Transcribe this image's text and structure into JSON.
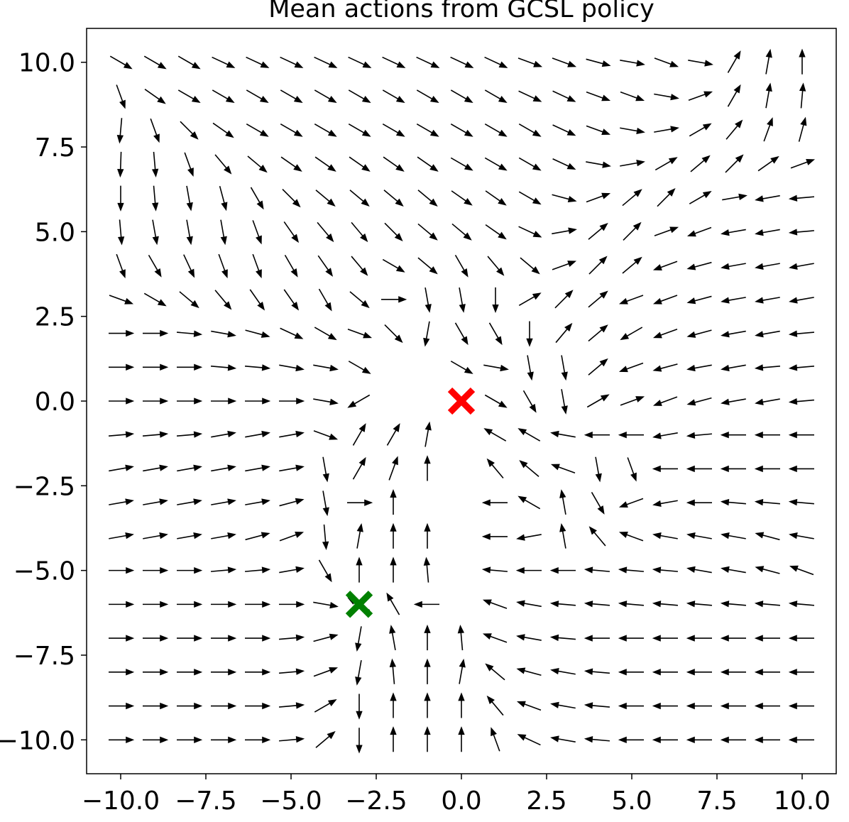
{
  "chart_data": {
    "type": "quiver",
    "title": "Mean actions from GCSL policy",
    "x": [
      -10,
      -9,
      -8,
      -7,
      -6,
      -5,
      -4,
      -3,
      -2,
      -1,
      0,
      1,
      2,
      3,
      4,
      5,
      6,
      7,
      8,
      9,
      10
    ],
    "y": [
      10,
      9,
      8,
      7,
      6,
      5,
      4,
      3,
      2,
      1,
      0,
      -1,
      -2,
      -3,
      -4,
      -5,
      -6,
      -7,
      -8,
      -9,
      -10
    ],
    "angles": [
      [
        -30,
        -30,
        -30,
        -25,
        -25,
        -25,
        -25,
        -25,
        -25,
        -25,
        -25,
        -25,
        -20,
        -20,
        -15,
        -10,
        -20,
        -10,
        60,
        80,
        90
      ],
      [
        -70,
        -35,
        -30,
        -30,
        -30,
        -30,
        -30,
        -30,
        -30,
        -30,
        -30,
        -30,
        -25,
        -25,
        -20,
        -20,
        -10,
        20,
        60,
        80,
        85
      ],
      [
        -95,
        -70,
        -45,
        -35,
        -30,
        -30,
        -30,
        -30,
        -30,
        -30,
        -30,
        -30,
        -30,
        -25,
        -20,
        -10,
        10,
        30,
        50,
        70,
        75
      ],
      [
        -92,
        -85,
        -70,
        -50,
        -40,
        -35,
        -35,
        -35,
        -35,
        -35,
        -30,
        -30,
        -30,
        -25,
        -10,
        10,
        30,
        40,
        45,
        35,
        20
      ],
      [
        -90,
        -85,
        -80,
        -75,
        -60,
        -45,
        -40,
        -40,
        -40,
        -40,
        -35,
        -35,
        -30,
        -15,
        20,
        40,
        45,
        30,
        10,
        190,
        185
      ],
      [
        -85,
        -80,
        -80,
        -80,
        -70,
        -55,
        -50,
        -50,
        -45,
        -40,
        -40,
        -35,
        -25,
        10,
        40,
        45,
        20,
        200,
        190,
        190,
        185
      ],
      [
        -70,
        -60,
        -65,
        -70,
        -70,
        -60,
        -55,
        -50,
        -30,
        -40,
        -60,
        -50,
        -40,
        20,
        45,
        40,
        200,
        195,
        190,
        190,
        190
      ],
      [
        -20,
        -30,
        -40,
        -50,
        -55,
        -55,
        -60,
        -40,
        0,
        -80,
        -80,
        -90,
        30,
        45,
        40,
        200,
        200,
        195,
        190,
        190,
        190
      ],
      [
        0,
        0,
        -5,
        -10,
        -15,
        -25,
        -30,
        -20,
        -45,
        -100,
        -60,
        -60,
        -90,
        50,
        40,
        210,
        200,
        195,
        190,
        190,
        185
      ],
      [
        0,
        0,
        0,
        -5,
        -5,
        -10,
        -10,
        -30,
        null,
        null,
        -30,
        -10,
        -80,
        -80,
        40,
        200,
        195,
        190,
        190,
        185,
        185
      ],
      [
        0,
        0,
        0,
        0,
        0,
        0,
        -10,
        210,
        null,
        null,
        null,
        -30,
        -60,
        -80,
        30,
        20,
        200,
        195,
        190,
        190,
        185
      ],
      [
        5,
        5,
        5,
        10,
        10,
        10,
        -20,
        60,
        60,
        80,
        null,
        150,
        150,
        170,
        180,
        180,
        190,
        185,
        180,
        180,
        180
      ],
      [
        10,
        10,
        10,
        10,
        10,
        10,
        -80,
        60,
        70,
        90,
        null,
        130,
        140,
        160,
        -80,
        -70,
        180,
        180,
        180,
        180,
        180
      ],
      [
        10,
        10,
        10,
        10,
        10,
        15,
        -80,
        0,
        90,
        null,
        null,
        180,
        150,
        100,
        -60,
        200,
        190,
        180,
        175,
        175,
        175
      ],
      [
        10,
        10,
        10,
        10,
        15,
        20,
        -85,
        80,
        90,
        90,
        null,
        180,
        -170,
        100,
        130,
        160,
        170,
        170,
        170,
        165,
        170
      ],
      [
        0,
        0,
        0,
        5,
        5,
        10,
        -60,
        90,
        90,
        95,
        null,
        175,
        180,
        180,
        175,
        175,
        175,
        170,
        170,
        165,
        160
      ],
      [
        0,
        0,
        0,
        0,
        0,
        0,
        -10,
        150,
        120,
        180,
        null,
        160,
        170,
        175,
        175,
        175,
        175,
        175,
        175,
        175,
        175
      ],
      [
        0,
        0,
        0,
        0,
        0,
        5,
        15,
        -100,
        100,
        90,
        95,
        160,
        170,
        175,
        180,
        180,
        180,
        180,
        180,
        180,
        180
      ],
      [
        0,
        0,
        0,
        0,
        0,
        5,
        20,
        -100,
        95,
        90,
        80,
        140,
        165,
        170,
        175,
        180,
        180,
        180,
        180,
        180,
        180
      ],
      [
        0,
        0,
        0,
        0,
        0,
        5,
        30,
        -90,
        90,
        90,
        90,
        130,
        160,
        170,
        175,
        180,
        180,
        180,
        180,
        180,
        180
      ],
      [
        0,
        0,
        0,
        0,
        0,
        5,
        40,
        -90,
        90,
        90,
        90,
        110,
        155,
        170,
        175,
        180,
        180,
        180,
        180,
        180,
        180
      ]
    ],
    "color": "#000000",
    "markers": [
      {
        "x": 0,
        "y": 0,
        "color": "#ff0000"
      },
      {
        "x": -3,
        "y": -6,
        "color": "#008000"
      }
    ],
    "xlim": [
      -11,
      11
    ],
    "ylim": [
      -11,
      11
    ],
    "xticks": [
      {
        "value": -10,
        "label": "−10.0"
      },
      {
        "value": -7.5,
        "label": "−7.5"
      },
      {
        "value": -5,
        "label": "−5.0"
      },
      {
        "value": -2.5,
        "label": "−2.5"
      },
      {
        "value": 0,
        "label": "0.0"
      },
      {
        "value": 2.5,
        "label": "2.5"
      },
      {
        "value": 5,
        "label": "5.0"
      },
      {
        "value": 7.5,
        "label": "7.5"
      },
      {
        "value": 10,
        "label": "10.0"
      }
    ],
    "yticks": [
      {
        "value": -10,
        "label": "−10.0"
      },
      {
        "value": -7.5,
        "label": "−7.5"
      },
      {
        "value": -5,
        "label": "−5.0"
      },
      {
        "value": -2.5,
        "label": "−2.5"
      },
      {
        "value": 0,
        "label": "0.0"
      },
      {
        "value": 2.5,
        "label": "2.5"
      },
      {
        "value": 5,
        "label": "5.0"
      },
      {
        "value": 7.5,
        "label": "7.5"
      },
      {
        "value": 10,
        "label": "10.0"
      }
    ]
  }
}
